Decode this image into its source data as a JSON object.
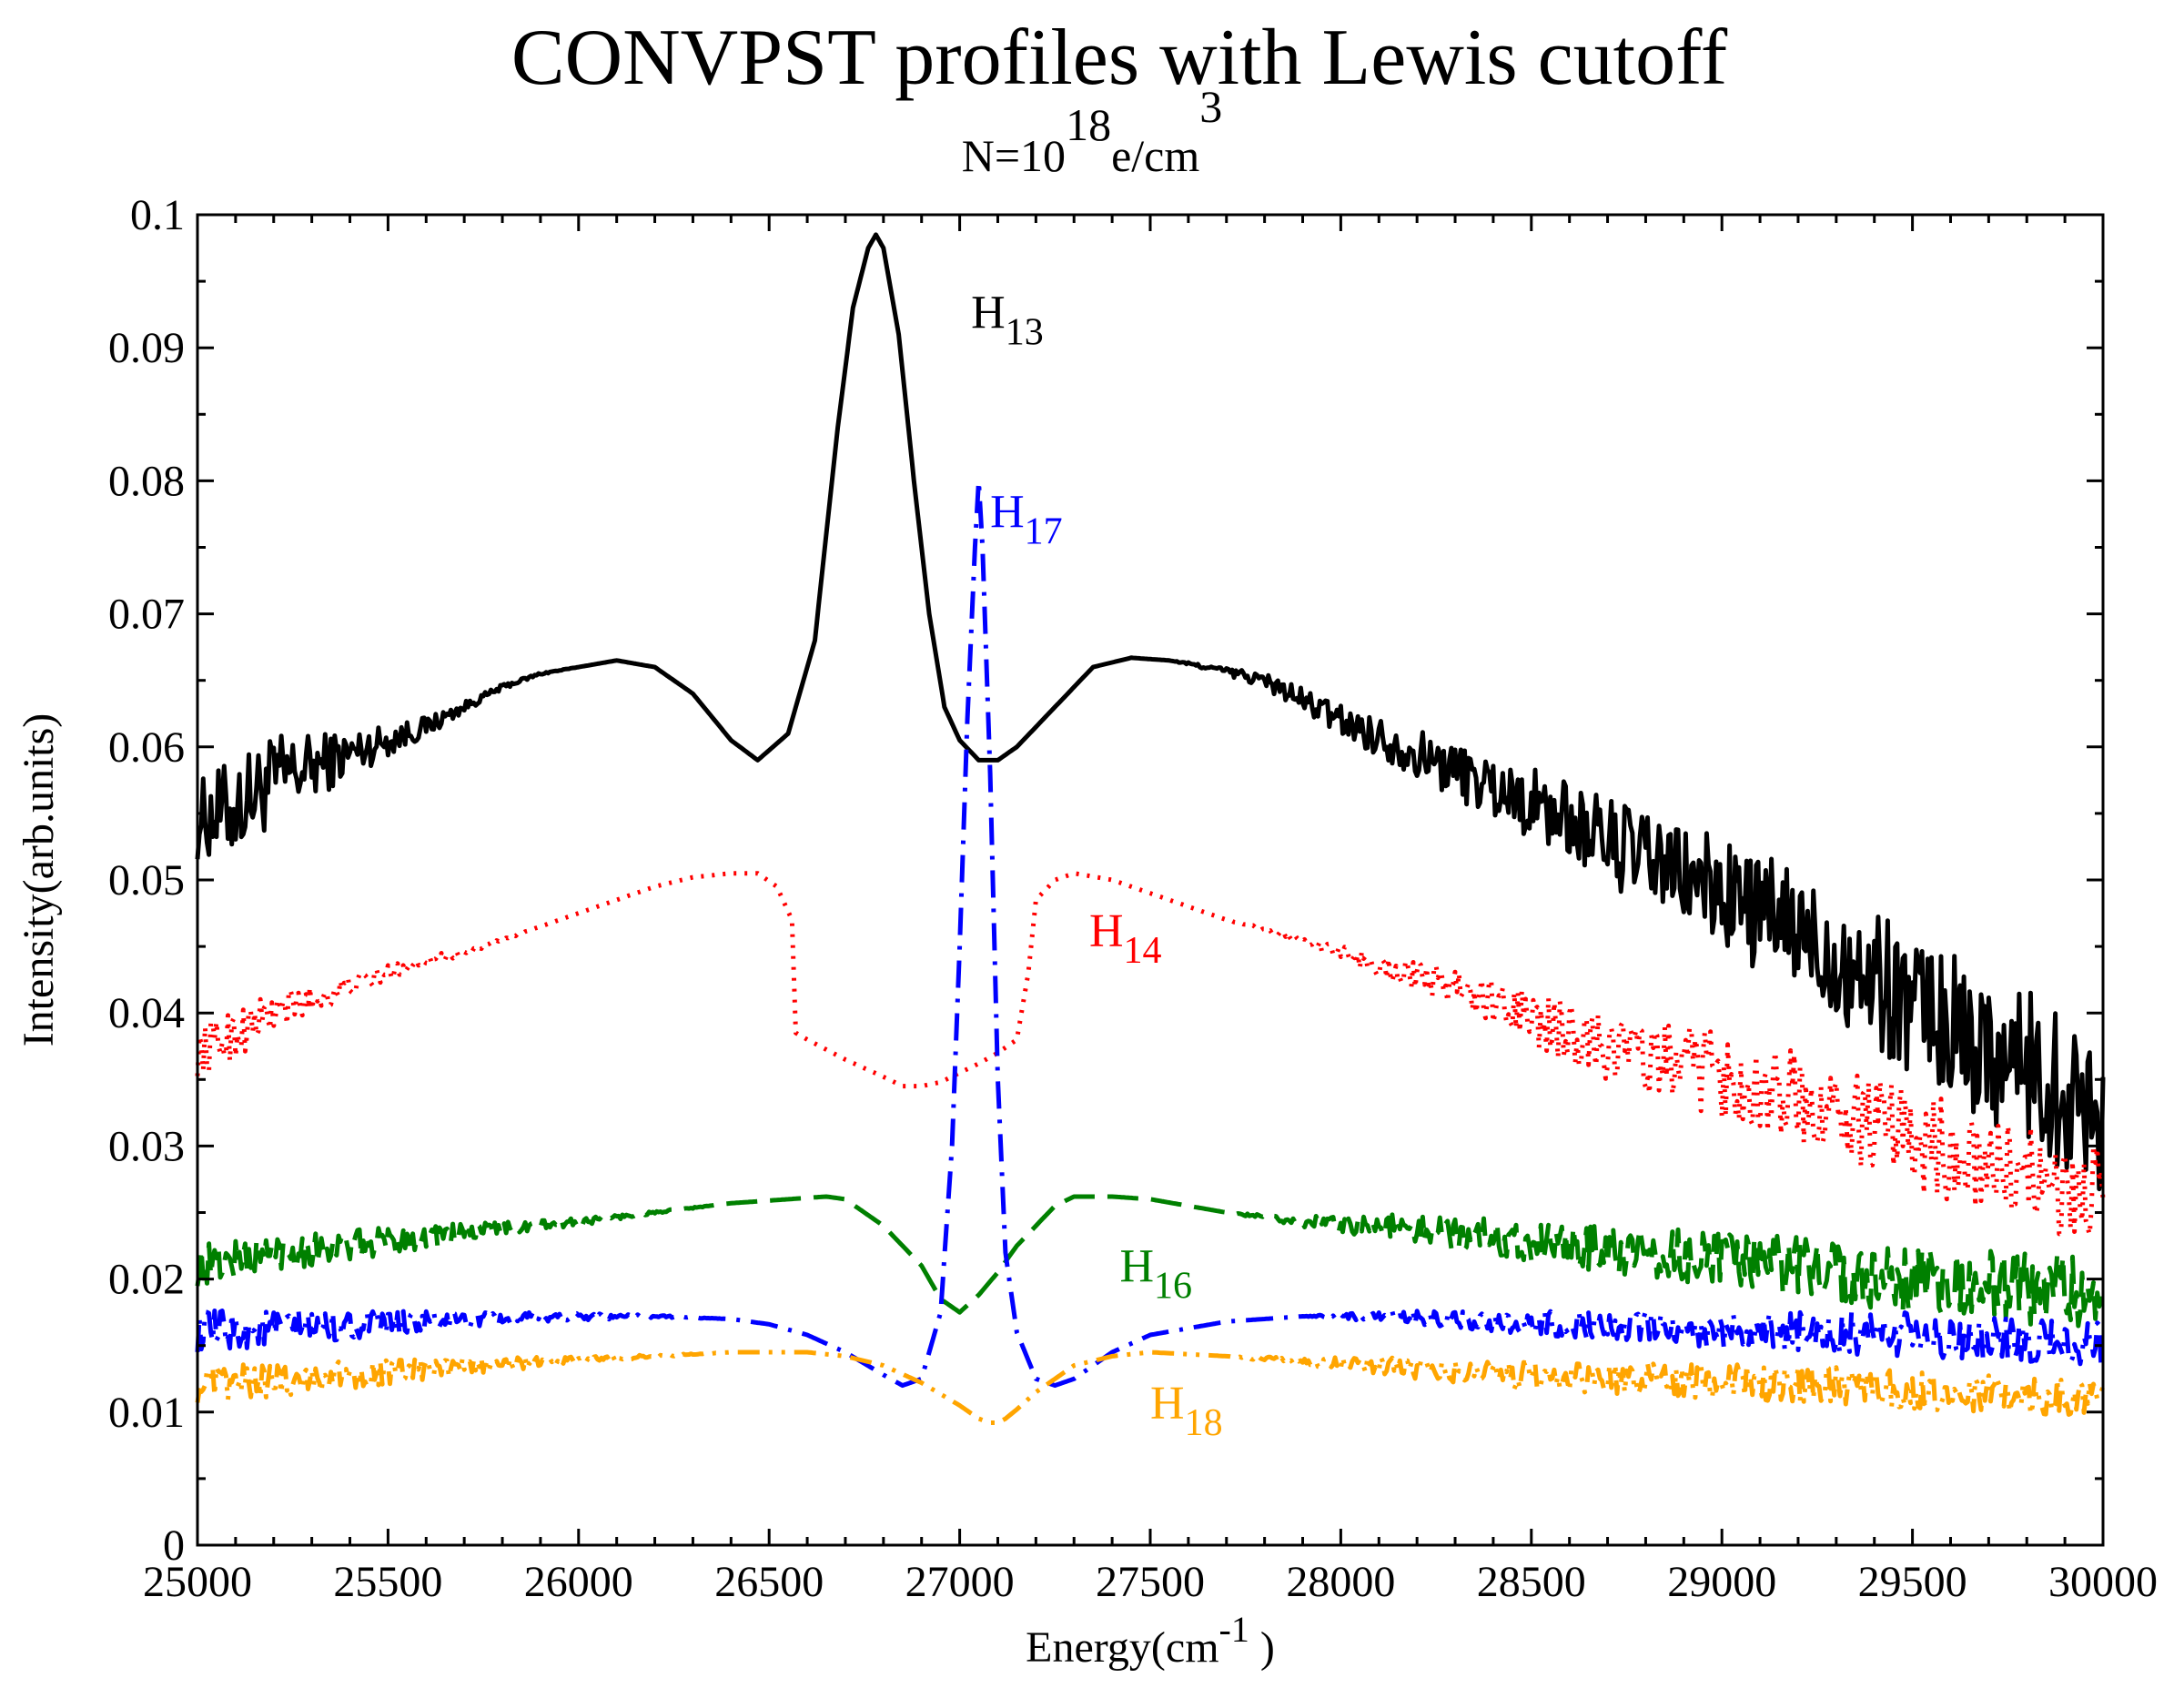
{
  "chart_data": {
    "type": "line",
    "title": "CONVPST  profiles with Lewis cutoff",
    "subtitle": {
      "prefix": "N=10",
      "exponent": "18",
      "unit": "e/cm",
      "unit_exponent": "3"
    },
    "xlabel": {
      "prefix": "Energy(cm",
      "exponent": "-1",
      "suffix": " )"
    },
    "ylabel": "Intensity(arb.units)",
    "xlim": [
      25000,
      30000
    ],
    "ylim": [
      0,
      0.1
    ],
    "xticks": [
      25000,
      25500,
      26000,
      26500,
      27000,
      27500,
      28000,
      28500,
      29000,
      29500,
      30000
    ],
    "xtick_labels": [
      "25000",
      "25500",
      "26000",
      "26500",
      "27000",
      "27500",
      "28000",
      "28500",
      "29000",
      "29500",
      "30000"
    ],
    "yticks": [
      0,
      0.01,
      0.02,
      0.03,
      0.04,
      0.05,
      0.06,
      0.07,
      0.08,
      0.09,
      0.1
    ],
    "ytick_labels": [
      "0",
      "0.01",
      "0.02",
      "0.03",
      "0.04",
      "0.05",
      "0.06",
      "0.07",
      "0.08",
      "0.09",
      "0.1"
    ],
    "series": [
      {
        "name": "H13",
        "label": "H",
        "label_sub": "13",
        "color": "#000000",
        "dash": "solid",
        "label_at": [
          27030,
          0.0915
        ],
        "x": [
          25000,
          25100,
          25200,
          25300,
          25400,
          25500,
          25600,
          25700,
          25800,
          25900,
          26000,
          26100,
          26200,
          26300,
          26400,
          26470,
          26550,
          26620,
          26680,
          26720,
          26760,
          26780,
          26800,
          26840,
          26880,
          26920,
          26960,
          27000,
          27050,
          27100,
          27150,
          27250,
          27350,
          27450,
          27550,
          27650,
          27800,
          28000,
          28200,
          28400,
          28600,
          28800,
          29000,
          29200,
          29400,
          29600,
          29800,
          29900,
          30000
        ],
        "y": [
          0.0545,
          0.0555,
          0.0575,
          0.0585,
          0.0595,
          0.0605,
          0.0615,
          0.063,
          0.0645,
          0.0655,
          0.066,
          0.0665,
          0.066,
          0.064,
          0.0605,
          0.059,
          0.061,
          0.068,
          0.084,
          0.093,
          0.0975,
          0.0985,
          0.0975,
          0.091,
          0.08,
          0.07,
          0.063,
          0.0605,
          0.059,
          0.059,
          0.06,
          0.063,
          0.066,
          0.0667,
          0.0665,
          0.066,
          0.065,
          0.062,
          0.0595,
          0.057,
          0.0545,
          0.0515,
          0.049,
          0.046,
          0.0425,
          0.039,
          0.036,
          0.034,
          0.0325
        ],
        "noise": [
          0.003,
          0.0038,
          0.0035,
          0.0025,
          0.0018,
          0.0012,
          0.0008,
          0.0004,
          0.0002,
          0.0001,
          0,
          0,
          0,
          0,
          0,
          0,
          0,
          0,
          0,
          0,
          0,
          0,
          0,
          0,
          0,
          0,
          0,
          0,
          0,
          0,
          0,
          0,
          0,
          0,
          0,
          0.0002,
          0.0006,
          0.0012,
          0.0018,
          0.0024,
          0.003,
          0.0036,
          0.0042,
          0.0048,
          0.0052,
          0.0055,
          0.0058,
          0.006,
          0.006
        ]
      },
      {
        "name": "H14",
        "label": "H",
        "label_sub": "14",
        "color": "#ff0000",
        "dash": "dotted",
        "label_at": [
          27340,
          0.045
        ],
        "x": [
          25000,
          25100,
          25200,
          25300,
          25400,
          25500,
          25600,
          25700,
          25800,
          25900,
          26000,
          26100,
          26200,
          26300,
          26400,
          26470,
          26520,
          26560,
          26570,
          26600,
          26700,
          26800,
          26850,
          26900,
          26950,
          27000,
          27050,
          27100,
          27150,
          27180,
          27200,
          27250,
          27300,
          27400,
          27500,
          27700,
          27900,
          28100,
          28300,
          28500,
          28700,
          28900,
          29100,
          29300,
          29500,
          29700,
          29900,
          30000
        ],
        "y": [
          0.037,
          0.0385,
          0.04,
          0.041,
          0.042,
          0.043,
          0.044,
          0.0445,
          0.0455,
          0.0465,
          0.0475,
          0.0485,
          0.0495,
          0.0502,
          0.0505,
          0.0505,
          0.0495,
          0.047,
          0.0385,
          0.038,
          0.0365,
          0.0352,
          0.0345,
          0.0345,
          0.0348,
          0.0355,
          0.0362,
          0.037,
          0.038,
          0.043,
          0.0485,
          0.05,
          0.0505,
          0.05,
          0.049,
          0.047,
          0.0455,
          0.0435,
          0.042,
          0.0395,
          0.0375,
          0.036,
          0.0345,
          0.0325,
          0.0305,
          0.0285,
          0.027,
          0.026
        ],
        "noise": [
          0.0018,
          0.002,
          0.0016,
          0.0012,
          0.0008,
          0.0006,
          0.0004,
          0.0002,
          0.0001,
          0,
          0,
          0,
          0,
          0,
          0,
          0,
          0,
          0,
          0,
          0,
          0,
          0,
          0,
          0,
          0,
          0,
          0,
          0,
          0,
          0,
          0,
          0,
          0,
          0,
          0,
          0,
          0.0003,
          0.0008,
          0.0014,
          0.002,
          0.0026,
          0.003,
          0.0034,
          0.0036,
          0.0038,
          0.0038,
          0.0038,
          0.0038
        ]
      },
      {
        "name": "H16",
        "label": "H",
        "label_sub": "16",
        "color": "#008000",
        "dash": "long-dash",
        "label_at": [
          27420,
          0.0198
        ],
        "x": [
          25000,
          25200,
          25400,
          25600,
          25800,
          26000,
          26200,
          26400,
          26550,
          26650,
          26700,
          26800,
          26900,
          26950,
          27000,
          27050,
          27100,
          27150,
          27250,
          27300,
          27400,
          27500,
          27700,
          27900,
          28100,
          28400,
          28700,
          29000,
          29300,
          29600,
          29800,
          30000
        ],
        "y": [
          0.021,
          0.022,
          0.0225,
          0.0232,
          0.0238,
          0.0243,
          0.025,
          0.0257,
          0.026,
          0.0262,
          0.026,
          0.024,
          0.021,
          0.0185,
          0.0175,
          0.0188,
          0.0205,
          0.0225,
          0.0255,
          0.0262,
          0.0262,
          0.026,
          0.025,
          0.0243,
          0.024,
          0.0232,
          0.0222,
          0.0215,
          0.0205,
          0.0197,
          0.0193,
          0.019
        ],
        "noise": [
          0.0016,
          0.0014,
          0.0012,
          0.0009,
          0.0005,
          0.0003,
          0.0001,
          0,
          0,
          0,
          0,
          0,
          0,
          0,
          0,
          0,
          0,
          0,
          0,
          0,
          0,
          0,
          0,
          0.0004,
          0.0009,
          0.0014,
          0.0018,
          0.0021,
          0.0024,
          0.0026,
          0.0027,
          0.0027
        ]
      },
      {
        "name": "H17",
        "label": "H",
        "label_sub": "17",
        "color": "#0000ff",
        "dash": "dash-dot",
        "label_at": [
          27080,
          0.0765
        ],
        "x": [
          25000,
          25200,
          25400,
          25600,
          25800,
          26000,
          26200,
          26400,
          26500,
          26600,
          26700,
          26800,
          26850,
          26900,
          26950,
          26980,
          27000,
          27020,
          27040,
          27050,
          27060,
          27080,
          27100,
          27120,
          27150,
          27200,
          27250,
          27300,
          27400,
          27500,
          27700,
          27900,
          28100,
          28400,
          28700,
          29000,
          29300,
          29600,
          29800,
          30000
        ],
        "y": [
          0.016,
          0.0163,
          0.0165,
          0.0168,
          0.017,
          0.0172,
          0.0172,
          0.017,
          0.0166,
          0.0158,
          0.0145,
          0.0128,
          0.012,
          0.0125,
          0.0175,
          0.03,
          0.045,
          0.062,
          0.075,
          0.08,
          0.075,
          0.058,
          0.035,
          0.022,
          0.016,
          0.0125,
          0.012,
          0.0125,
          0.0145,
          0.0158,
          0.0168,
          0.0172,
          0.0172,
          0.0168,
          0.0165,
          0.0162,
          0.016,
          0.0157,
          0.0155,
          0.015
        ],
        "noise": [
          0.0016,
          0.0014,
          0.0011,
          0.0008,
          0.0005,
          0.0003,
          0.0001,
          0,
          0,
          0,
          0,
          0,
          0,
          0,
          0,
          0,
          0,
          0,
          0,
          0,
          0,
          0,
          0,
          0,
          0,
          0,
          0,
          0,
          0,
          0,
          0,
          0,
          0.0004,
          0.0008,
          0.0011,
          0.0014,
          0.0016,
          0.0017,
          0.0017,
          0.0017
        ]
      },
      {
        "name": "H18",
        "label": "H",
        "label_sub": "18",
        "color": "#ffa500",
        "dash": "dash-dot-dot",
        "label_at": [
          27500,
          0.0095
        ],
        "x": [
          25000,
          25200,
          25400,
          25600,
          25800,
          26000,
          26200,
          26400,
          26600,
          26700,
          26800,
          26900,
          27000,
          27050,
          27080,
          27100,
          27120,
          27150,
          27200,
          27300,
          27400,
          27500,
          27700,
          27900,
          28100,
          28400,
          28700,
          29000,
          29300,
          29600,
          29800,
          30000
        ],
        "y": [
          0.012,
          0.0124,
          0.0128,
          0.0132,
          0.0136,
          0.0139,
          0.0142,
          0.0145,
          0.0145,
          0.0142,
          0.0135,
          0.0122,
          0.0105,
          0.0095,
          0.0092,
          0.0092,
          0.0095,
          0.0102,
          0.0115,
          0.0135,
          0.0142,
          0.0145,
          0.0142,
          0.0138,
          0.0135,
          0.0128,
          0.0125,
          0.0123,
          0.012,
          0.0115,
          0.0112,
          0.011
        ],
        "noise": [
          0.0014,
          0.0013,
          0.0011,
          0.0008,
          0.0005,
          0.0003,
          0.0001,
          0,
          0,
          0,
          0,
          0,
          0,
          0,
          0,
          0,
          0,
          0,
          0,
          0,
          0,
          0,
          0,
          0.0003,
          0.0007,
          0.001,
          0.0012,
          0.0013,
          0.0014,
          0.0014,
          0.0014,
          0.0014
        ]
      }
    ]
  }
}
